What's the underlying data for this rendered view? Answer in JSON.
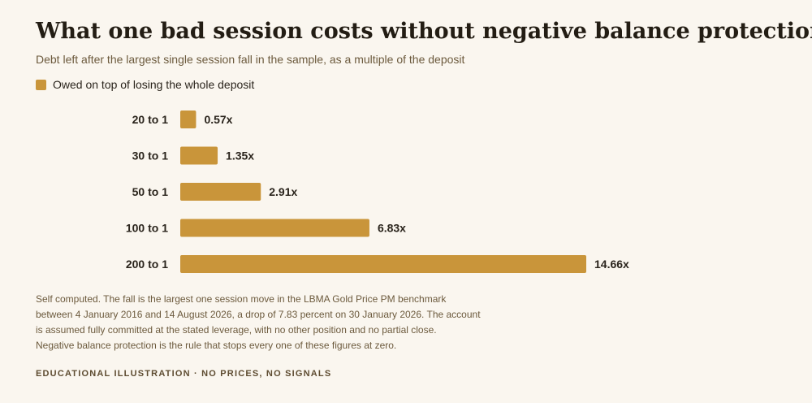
{
  "title": "What one bad session costs without negative balance protection",
  "subtitle": "Debt left after the largest single session fall in the sample, as a multiple of the deposit",
  "colors": {
    "background": "#faf6ef",
    "bar": "#c9953a",
    "text": "#2a241c",
    "muted": "#6c5a3d"
  },
  "chart_data": {
    "type": "bar",
    "orientation": "horizontal",
    "title": "What one bad session costs without negative balance protection",
    "subtitle": "Debt left after the largest single session fall in the sample, as a multiple of the deposit",
    "categories": [
      "20 to 1",
      "30 to 1",
      "50 to 1",
      "100 to 1",
      "200 to 1"
    ],
    "series": [
      {
        "name": "Owed on top of losing the whole deposit",
        "values": [
          0.57,
          1.35,
          2.91,
          6.83,
          14.66
        ],
        "labels": [
          "0.57x",
          "1.35x",
          "2.91x",
          "6.83x",
          "14.66x"
        ]
      }
    ],
    "xlim": [
      0,
      14.66
    ],
    "xlabel": "",
    "ylabel": "",
    "grid": false,
    "legend": "top-left",
    "color": "#c9953a"
  },
  "notes": [
    "Self computed. The fall is the largest one session move in the LBMA Gold Price PM benchmark",
    "between 4 January 2016 and 14 August 2026, a drop of 7.83 percent on 30 January 2026. The account",
    "is assumed fully committed at the stated leverage, with no other position and no partial close.",
    "Negative balance protection is the rule that stops every one of these figures at zero."
  ],
  "footer": "EDUCATIONAL ILLUSTRATION · NO PRICES, NO SIGNALS"
}
